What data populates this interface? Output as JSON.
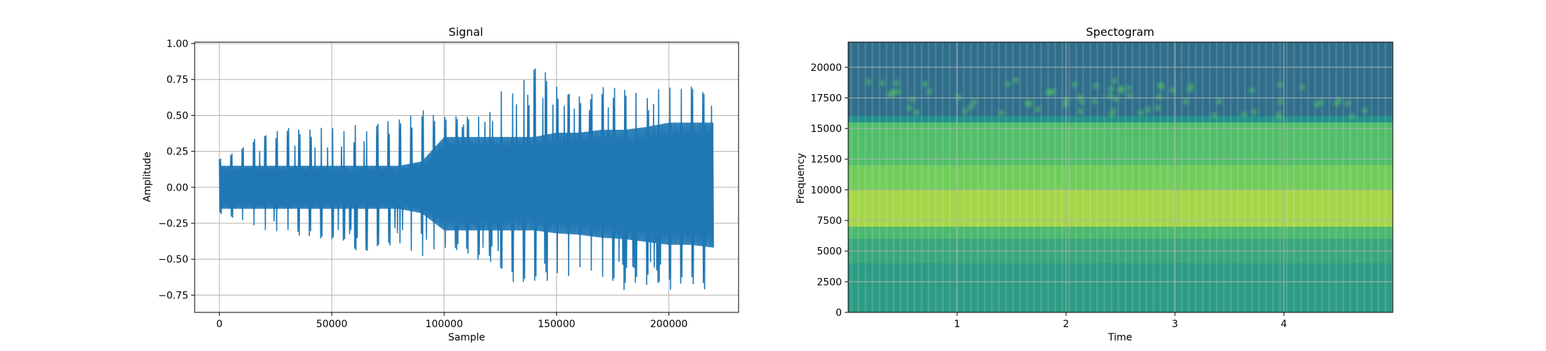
{
  "chart_data": [
    {
      "type": "line",
      "title": "Signal",
      "xlabel": "Sample",
      "ylabel": "Amplitude",
      "xlim": [
        -11000,
        231000
      ],
      "ylim": [
        -0.87,
        1.01
      ],
      "xticks": [
        0,
        50000,
        100000,
        150000,
        200000
      ],
      "xtick_labels": [
        "0",
        "50000",
        "100000",
        "150000",
        "200000"
      ],
      "yticks": [
        -0.75,
        -0.5,
        -0.25,
        0.0,
        0.25,
        0.5,
        0.75,
        1.0
      ],
      "ytick_labels": [
        "−0.75",
        "−0.50",
        "−0.25",
        "0.00",
        "0.25",
        "0.50",
        "0.75",
        "1.00"
      ],
      "grid": true,
      "color": "#1f77b4",
      "series": [
        {
          "x": [
            0,
            10000,
            20000,
            30000,
            40000,
            50000,
            60000,
            70000,
            80000,
            90000,
            100000,
            110000,
            120000,
            130000,
            140000,
            150000,
            160000,
            170000,
            180000,
            190000,
            200000,
            210000,
            220000
          ],
          "upper_envelope": [
            0.2,
            0.3,
            0.38,
            0.44,
            0.42,
            0.44,
            0.5,
            0.45,
            0.48,
            0.55,
            0.5,
            0.52,
            0.58,
            0.75,
            0.9,
            0.72,
            0.66,
            0.7,
            0.7,
            0.68,
            0.78,
            0.7,
            0.7
          ],
          "lower_envelope": [
            -0.18,
            -0.25,
            -0.3,
            -0.33,
            -0.35,
            -0.36,
            -0.5,
            -0.48,
            -0.45,
            -0.48,
            -0.45,
            -0.47,
            -0.55,
            -0.68,
            -0.75,
            -0.65,
            -0.62,
            -0.65,
            -0.75,
            -0.7,
            -0.72,
            -0.7,
            -0.73
          ],
          "core_upper": [
            0.15,
            0.15,
            0.15,
            0.15,
            0.15,
            0.15,
            0.15,
            0.15,
            0.15,
            0.18,
            0.35,
            0.35,
            0.35,
            0.35,
            0.35,
            0.38,
            0.38,
            0.4,
            0.4,
            0.42,
            0.45,
            0.45,
            0.45
          ],
          "core_lower": [
            -0.15,
            -0.15,
            -0.15,
            -0.15,
            -0.15,
            -0.15,
            -0.15,
            -0.15,
            -0.15,
            -0.18,
            -0.3,
            -0.3,
            -0.3,
            -0.3,
            -0.3,
            -0.32,
            -0.33,
            -0.35,
            -0.36,
            -0.38,
            -0.4,
            -0.4,
            -0.42
          ]
        }
      ]
    },
    {
      "type": "heatmap",
      "title": "Spectogram",
      "xlabel": "Time",
      "ylabel": "Frequency",
      "xlim": [
        0,
        5.0
      ],
      "ylim": [
        0,
        22050
      ],
      "xticks": [
        1,
        2,
        3,
        4
      ],
      "xtick_labels": [
        "1",
        "2",
        "3",
        "4"
      ],
      "yticks": [
        0,
        2500,
        5000,
        7500,
        10000,
        12500,
        15000,
        17500,
        20000
      ],
      "ytick_labels": [
        "0",
        "2500",
        "5000",
        "7500",
        "10000",
        "12500",
        "15000",
        "17500",
        "20000"
      ],
      "grid": true,
      "colormap": "viridis",
      "bands": [
        {
          "from": 0,
          "to": 4000,
          "level": 0.55
        },
        {
          "from": 4000,
          "to": 6000,
          "level": 0.6
        },
        {
          "from": 6000,
          "to": 7000,
          "level": 0.68
        },
        {
          "from": 7000,
          "to": 10000,
          "level": 0.86
        },
        {
          "from": 10000,
          "to": 12000,
          "level": 0.78
        },
        {
          "from": 12000,
          "to": 15500,
          "level": 0.7
        },
        {
          "from": 15500,
          "to": 16000,
          "level": 0.5
        },
        {
          "from": 16000,
          "to": 22050,
          "level": 0.36
        }
      ]
    }
  ]
}
